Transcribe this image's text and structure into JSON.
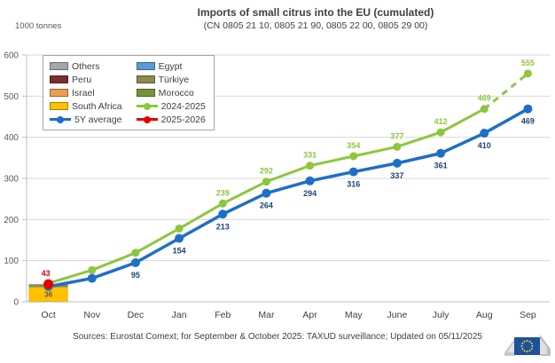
{
  "header": {
    "title": "Imports of small citrus into the EU (cumulated)",
    "subtitle": "(CN 0805 21 10, 0805 21 90, 0805 22 00, 0805 29 00)"
  },
  "unit_label": "1000 tonnes",
  "legend": {
    "items": [
      {
        "label": "Others",
        "type": "area",
        "color": "#A6A6A6"
      },
      {
        "label": "Peru",
        "type": "area",
        "color": "#7D2D2D"
      },
      {
        "label": "Israel",
        "type": "area",
        "color": "#ED9C54"
      },
      {
        "label": "South Africa",
        "type": "area",
        "color": "#FFC000"
      },
      {
        "label": "5Y average",
        "type": "line",
        "color": "#1E6FC8"
      },
      {
        "label": "Egypt",
        "type": "area",
        "color": "#5B9BD5"
      },
      {
        "label": "Türkiye",
        "type": "area",
        "color": "#8C8951"
      },
      {
        "label": "Morocco",
        "type": "area",
        "color": "#76933C"
      },
      {
        "label": "2024-2025",
        "type": "line",
        "color": "#8DC63F"
      },
      {
        "label": "2025-2026",
        "type": "line",
        "color": "#E60000"
      }
    ]
  },
  "chart_data": {
    "type": "line",
    "title": "Imports of small citrus into the EU (cumulated)",
    "ylabel": "1000 tonnes",
    "ylim": [
      0,
      600
    ],
    "yticks": [
      0,
      100,
      200,
      300,
      400,
      500,
      600
    ],
    "grid": true,
    "categories": [
      "Oct",
      "Nov",
      "Dec",
      "Jan",
      "Feb",
      "Mar",
      "Apr",
      "May",
      "June",
      "July",
      "Aug",
      "Sep"
    ],
    "bar": {
      "category_index": 0,
      "segments": [
        {
          "name": "South Africa",
          "value": 36,
          "color": "#FFC000",
          "label": "36"
        },
        {
          "name": "Türkiye",
          "value": 4,
          "color": "#8C8951"
        },
        {
          "name": "Others",
          "value": 3,
          "color": "#A6A6A6"
        }
      ]
    },
    "series": [
      {
        "name": "2024-2025",
        "color": "#8DC63F",
        "label_color": "#8DC63F",
        "label_position": "above",
        "marker_radius": 4.5,
        "line_width": 3,
        "dashed_from_index": 10,
        "values": [
          45,
          77,
          119,
          178,
          239,
          292,
          331,
          354,
          377,
          412,
          469,
          555
        ],
        "labels": [
          null,
          null,
          null,
          null,
          "239",
          "292",
          "331",
          "354",
          "377",
          "412",
          "469",
          "555"
        ]
      },
      {
        "name": "5Y average",
        "color": "#1E6FC8",
        "label_color": "#1F4576",
        "label_position": "below",
        "marker_radius": 5,
        "line_width": 3.5,
        "values": [
          37,
          57,
          95,
          154,
          213,
          264,
          294,
          316,
          337,
          361,
          410,
          469
        ],
        "labels": [
          null,
          null,
          "95",
          "154",
          "213",
          "264",
          "294",
          "316",
          "337",
          "361",
          "410",
          "469"
        ]
      },
      {
        "name": "2025-2026",
        "color": "#E60000",
        "label_color": "#E60000",
        "label_position": "above",
        "marker_radius": 5.5,
        "line_width": 3,
        "values": [
          43,
          null,
          null,
          null,
          null,
          null,
          null,
          null,
          null,
          null,
          null,
          null
        ],
        "labels": [
          "43",
          null,
          null,
          null,
          null,
          null,
          null,
          null,
          null,
          null,
          null,
          null
        ]
      }
    ]
  },
  "footer": {
    "source": "Sources: Eurostat Comext; for September & October 2025: TAXUD surveillance; Updated on 05/11/2025"
  }
}
